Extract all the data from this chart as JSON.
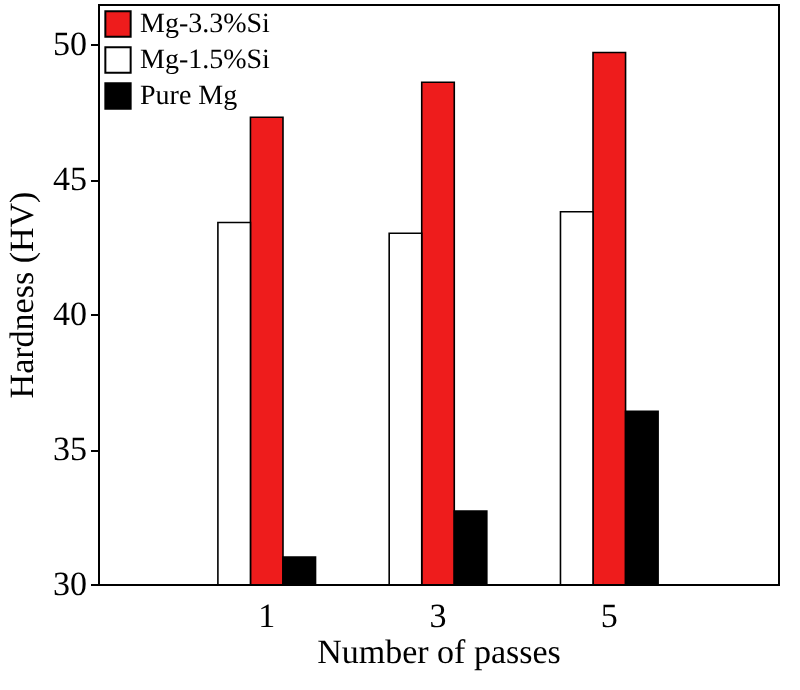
{
  "chart_data": {
    "type": "bar",
    "xlabel": "Number of passes",
    "ylabel": "Hardness (HV)",
    "categories": [
      "1",
      "3",
      "5"
    ],
    "series": [
      {
        "name": "Mg-3.3%Si",
        "color": "#ee1c1c",
        "values": [
          47.3,
          48.6,
          49.7
        ]
      },
      {
        "name": "Mg-1.5%Si",
        "color": "#ffffff",
        "values": [
          43.4,
          43.0,
          43.8
        ]
      },
      {
        "name": "Pure Mg",
        "color": "#000000",
        "values": [
          31.0,
          32.7,
          36.4
        ]
      }
    ],
    "ylim": [
      30,
      51.5
    ],
    "yticks": [
      30,
      35,
      40,
      45,
      50
    ],
    "legend": "top left",
    "grid": false
  }
}
